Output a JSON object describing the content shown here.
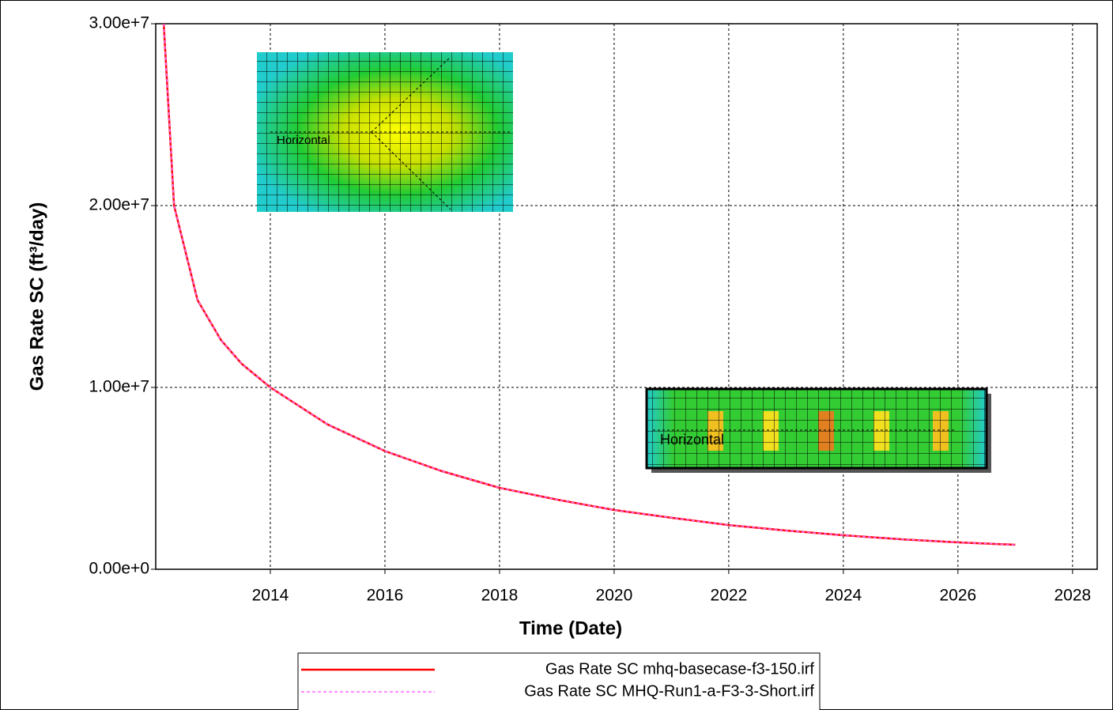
{
  "chart_data": {
    "type": "line",
    "x_label": "Time (Date)",
    "y_label": "Gas Rate SC (ft³/day)",
    "x": [
      2012.14,
      2012.32,
      2012.73,
      2013.14,
      2013.5,
      2014,
      2015,
      2016,
      2017,
      2018,
      2019,
      2020,
      2021,
      2022,
      2023,
      2024,
      2025,
      2026,
      2027
    ],
    "series": [
      {
        "name": "Gas Rate SC mhq-basecase-f3-150.irf",
        "color": "#ff0000",
        "line_style": "solid",
        "values": [
          30000000,
          20000000,
          14800000,
          12600000,
          11300000,
          10000000,
          7960000,
          6500000,
          5390000,
          4480000,
          3830000,
          3260000,
          2830000,
          2430000,
          2130000,
          1870000,
          1650000,
          1480000,
          1350000
        ]
      },
      {
        "name": "Gas Rate SC MHQ-Run1-a-F3-3-Short.irf",
        "color": "#ff66ff",
        "line_style": "dashed",
        "values": [
          30000000,
          20000000,
          14800000,
          12600000,
          11300000,
          10000000,
          7960000,
          6500000,
          5390000,
          4480000,
          3830000,
          3260000,
          2830000,
          2430000,
          2130000,
          1870000,
          1650000,
          1480000,
          1350000
        ]
      }
    ],
    "xlim": [
      2012,
      2028.43
    ],
    "xticks": [
      2014,
      2016,
      2018,
      2020,
      2022,
      2024,
      2026,
      2028
    ],
    "ylim": [
      0,
      30000000
    ],
    "yticks": [
      {
        "value": 0,
        "label": "0.00e+0"
      },
      {
        "value": 10000000,
        "label": "1.00e+7"
      },
      {
        "value": 20000000,
        "label": "2.00e+7"
      },
      {
        "value": 30000000,
        "label": "3.00e+7"
      }
    ],
    "grid": true,
    "legend": "bottom",
    "annotations": [
      "Horizontal",
      "Horizontal"
    ]
  }
}
